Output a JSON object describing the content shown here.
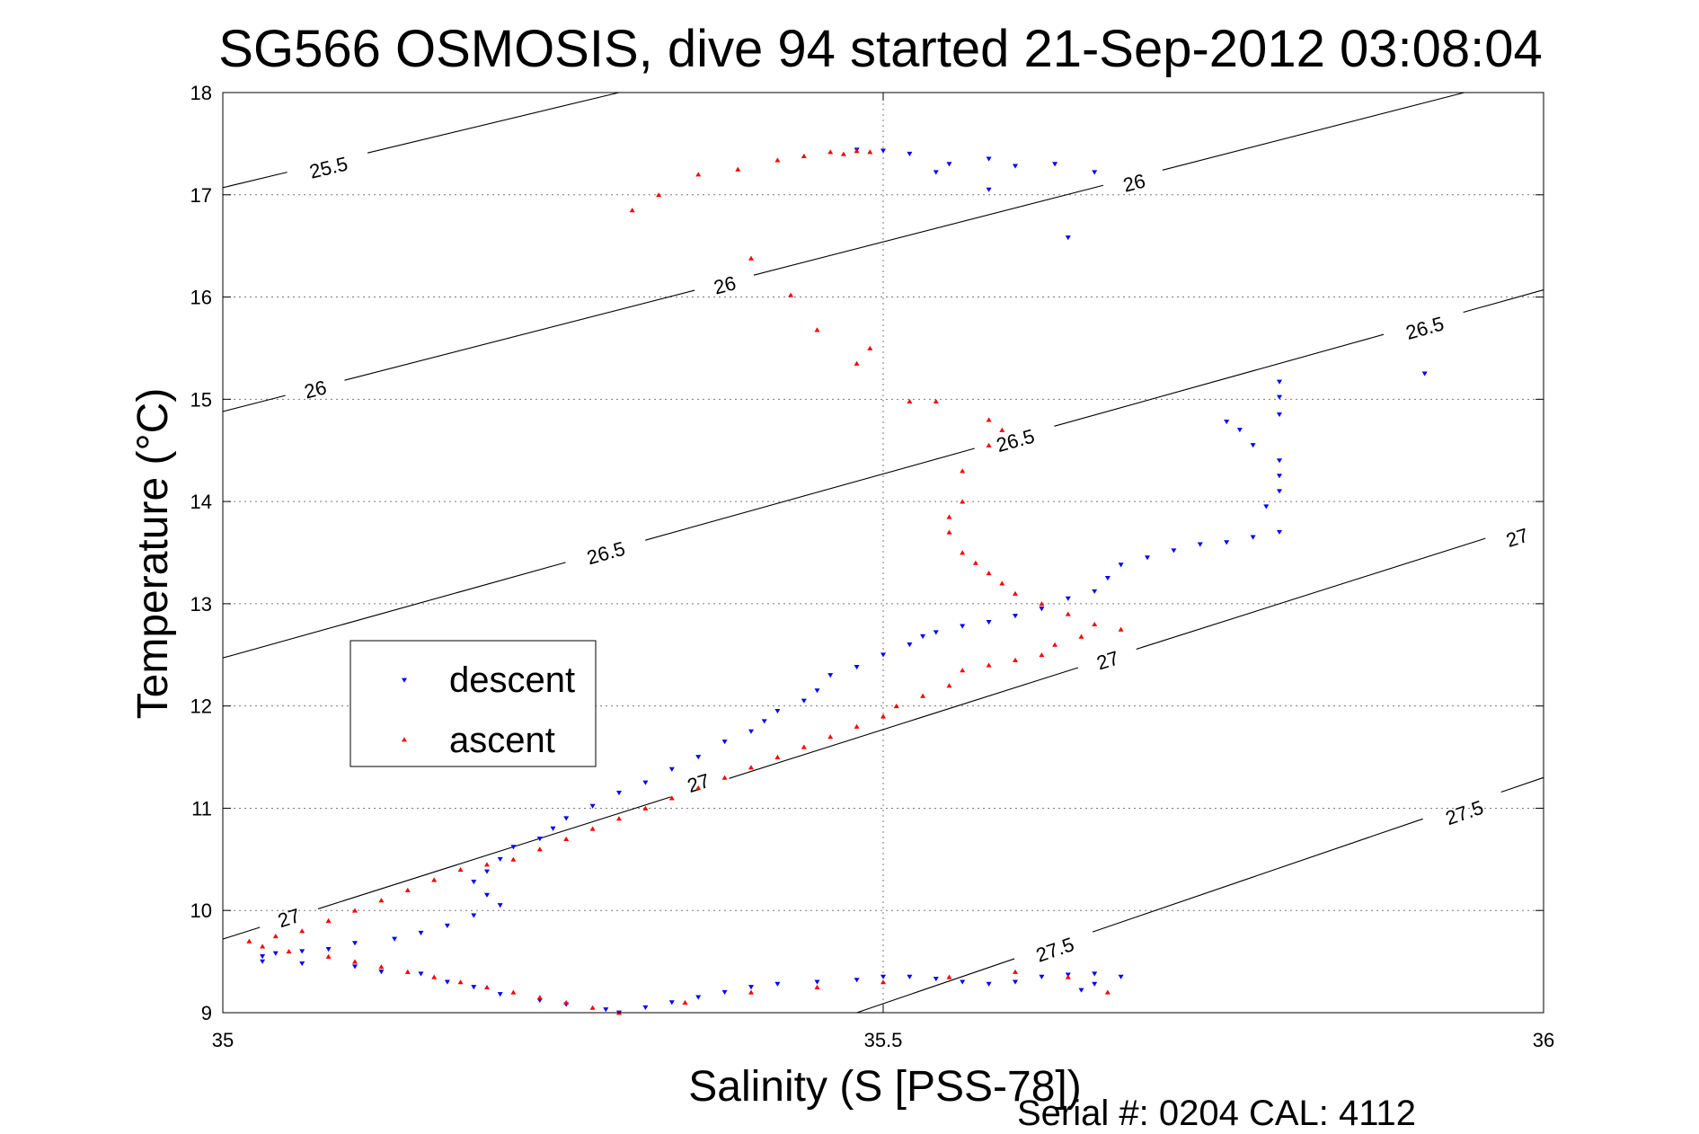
{
  "chart_data": {
    "type": "scatter",
    "title": "SG566 OSMOSIS, dive 94 started 21-Sep-2012 03:08:04",
    "xlabel": "Salinity (S [PSS-78])",
    "ylabel": "Temperature (°C)",
    "xlim": [
      35,
      36
    ],
    "ylim": [
      9,
      18
    ],
    "x_ticks": [
      "35",
      "35.5",
      "36"
    ],
    "y_ticks": [
      "9",
      "10",
      "11",
      "12",
      "13",
      "14",
      "15",
      "16",
      "17",
      "18"
    ],
    "grid": true,
    "legend_position": "left-middle",
    "footer": "Serial #: 0204  CAL: 4112",
    "series": [
      {
        "name": "descent",
        "color": "#0000ff",
        "marker": "down-triangle",
        "points": [
          [
            35.48,
            17.44
          ],
          [
            35.5,
            17.43
          ],
          [
            35.52,
            17.4
          ],
          [
            35.55,
            17.3
          ],
          [
            35.58,
            17.35
          ],
          [
            35.54,
            17.22
          ],
          [
            35.6,
            17.28
          ],
          [
            35.63,
            17.3
          ],
          [
            35.58,
            17.05
          ],
          [
            35.66,
            17.22
          ],
          [
            35.64,
            16.58
          ],
          [
            35.91,
            15.25
          ],
          [
            35.8,
            15.17
          ],
          [
            35.8,
            15.02
          ],
          [
            35.8,
            14.85
          ],
          [
            35.76,
            14.78
          ],
          [
            35.77,
            14.7
          ],
          [
            35.78,
            14.55
          ],
          [
            35.8,
            14.4
          ],
          [
            35.8,
            14.25
          ],
          [
            35.8,
            14.1
          ],
          [
            35.79,
            13.95
          ],
          [
            35.8,
            13.7
          ],
          [
            35.78,
            13.65
          ],
          [
            35.76,
            13.6
          ],
          [
            35.74,
            13.58
          ],
          [
            35.72,
            13.52
          ],
          [
            35.7,
            13.45
          ],
          [
            35.68,
            13.38
          ],
          [
            35.67,
            13.25
          ],
          [
            35.66,
            13.12
          ],
          [
            35.64,
            13.05
          ],
          [
            35.62,
            12.95
          ],
          [
            35.6,
            12.88
          ],
          [
            35.58,
            12.82
          ],
          [
            35.56,
            12.78
          ],
          [
            35.54,
            12.72
          ],
          [
            35.53,
            12.68
          ],
          [
            35.52,
            12.6
          ],
          [
            35.5,
            12.5
          ],
          [
            35.48,
            12.38
          ],
          [
            35.46,
            12.3
          ],
          [
            35.45,
            12.15
          ],
          [
            35.44,
            12.05
          ],
          [
            35.42,
            11.95
          ],
          [
            35.41,
            11.85
          ],
          [
            35.4,
            11.75
          ],
          [
            35.38,
            11.65
          ],
          [
            35.36,
            11.5
          ],
          [
            35.34,
            11.38
          ],
          [
            35.32,
            11.25
          ],
          [
            35.3,
            11.15
          ],
          [
            35.28,
            11.02
          ],
          [
            35.26,
            10.9
          ],
          [
            35.25,
            10.8
          ],
          [
            35.24,
            10.7
          ],
          [
            35.22,
            10.62
          ],
          [
            35.21,
            10.5
          ],
          [
            35.2,
            10.38
          ],
          [
            35.19,
            10.28
          ],
          [
            35.2,
            10.15
          ],
          [
            35.21,
            10.05
          ],
          [
            35.19,
            9.95
          ],
          [
            35.17,
            9.85
          ],
          [
            35.15,
            9.78
          ],
          [
            35.13,
            9.72
          ],
          [
            35.1,
            9.68
          ],
          [
            35.08,
            9.62
          ],
          [
            35.06,
            9.6
          ],
          [
            35.04,
            9.58
          ],
          [
            35.03,
            9.55
          ],
          [
            35.03,
            9.5
          ],
          [
            35.06,
            9.48
          ],
          [
            35.1,
            9.45
          ],
          [
            35.12,
            9.4
          ],
          [
            35.15,
            9.38
          ],
          [
            35.17,
            9.3
          ],
          [
            35.19,
            9.25
          ],
          [
            35.21,
            9.18
          ],
          [
            35.24,
            9.12
          ],
          [
            35.26,
            9.08
          ],
          [
            35.29,
            9.03
          ],
          [
            35.3,
            9.0
          ],
          [
            35.32,
            9.05
          ],
          [
            35.34,
            9.1
          ],
          [
            35.36,
            9.15
          ],
          [
            35.38,
            9.2
          ],
          [
            35.4,
            9.25
          ],
          [
            35.42,
            9.28
          ],
          [
            35.45,
            9.3
          ],
          [
            35.48,
            9.32
          ],
          [
            35.5,
            9.35
          ],
          [
            35.52,
            9.35
          ],
          [
            35.54,
            9.33
          ],
          [
            35.56,
            9.3
          ],
          [
            35.58,
            9.28
          ],
          [
            35.6,
            9.3
          ],
          [
            35.62,
            9.35
          ],
          [
            35.64,
            9.37
          ],
          [
            35.66,
            9.38
          ],
          [
            35.68,
            9.35
          ],
          [
            35.66,
            9.28
          ],
          [
            35.65,
            9.22
          ]
        ]
      },
      {
        "name": "ascent",
        "color": "#ff0000",
        "marker": "up-triangle",
        "points": [
          [
            35.31,
            16.85
          ],
          [
            35.33,
            17.0
          ],
          [
            35.36,
            17.2
          ],
          [
            35.39,
            17.25
          ],
          [
            35.42,
            17.34
          ],
          [
            35.44,
            17.38
          ],
          [
            35.46,
            17.42
          ],
          [
            35.48,
            17.43
          ],
          [
            35.49,
            17.42
          ],
          [
            35.47,
            17.4
          ],
          [
            35.4,
            16.38
          ],
          [
            35.43,
            16.02
          ],
          [
            35.45,
            15.68
          ],
          [
            35.49,
            15.5
          ],
          [
            35.48,
            15.35
          ],
          [
            35.52,
            14.98
          ],
          [
            35.54,
            14.98
          ],
          [
            35.58,
            14.8
          ],
          [
            35.59,
            14.7
          ],
          [
            35.58,
            14.55
          ],
          [
            35.56,
            14.3
          ],
          [
            35.56,
            14.0
          ],
          [
            35.55,
            13.85
          ],
          [
            35.55,
            13.7
          ],
          [
            35.56,
            13.5
          ],
          [
            35.57,
            13.4
          ],
          [
            35.58,
            13.3
          ],
          [
            35.59,
            13.2
          ],
          [
            35.6,
            13.1
          ],
          [
            35.62,
            13.0
          ],
          [
            35.64,
            12.9
          ],
          [
            35.66,
            12.8
          ],
          [
            35.68,
            12.75
          ],
          [
            35.65,
            12.68
          ],
          [
            35.63,
            12.6
          ],
          [
            35.62,
            12.5
          ],
          [
            35.6,
            12.45
          ],
          [
            35.58,
            12.4
          ],
          [
            35.56,
            12.35
          ],
          [
            35.55,
            12.2
          ],
          [
            35.53,
            12.1
          ],
          [
            35.51,
            12.0
          ],
          [
            35.5,
            11.9
          ],
          [
            35.48,
            11.8
          ],
          [
            35.46,
            11.7
          ],
          [
            35.44,
            11.6
          ],
          [
            35.42,
            11.5
          ],
          [
            35.4,
            11.4
          ],
          [
            35.38,
            11.3
          ],
          [
            35.36,
            11.2
          ],
          [
            35.34,
            11.1
          ],
          [
            35.32,
            11.0
          ],
          [
            35.3,
            10.9
          ],
          [
            35.28,
            10.8
          ],
          [
            35.26,
            10.7
          ],
          [
            35.24,
            10.6
          ],
          [
            35.22,
            10.5
          ],
          [
            35.2,
            10.45
          ],
          [
            35.18,
            10.4
          ],
          [
            35.16,
            10.3
          ],
          [
            35.14,
            10.2
          ],
          [
            35.12,
            10.1
          ],
          [
            35.1,
            10.0
          ],
          [
            35.08,
            9.9
          ],
          [
            35.06,
            9.8
          ],
          [
            35.04,
            9.75
          ],
          [
            35.02,
            9.7
          ],
          [
            35.03,
            9.65
          ],
          [
            35.05,
            9.6
          ],
          [
            35.08,
            9.55
          ],
          [
            35.1,
            9.5
          ],
          [
            35.12,
            9.45
          ],
          [
            35.14,
            9.4
          ],
          [
            35.16,
            9.35
          ],
          [
            35.18,
            9.3
          ],
          [
            35.2,
            9.25
          ],
          [
            35.22,
            9.2
          ],
          [
            35.24,
            9.15
          ],
          [
            35.26,
            9.1
          ],
          [
            35.28,
            9.05
          ],
          [
            35.3,
            9.0
          ],
          [
            35.35,
            9.1
          ],
          [
            35.4,
            9.2
          ],
          [
            35.45,
            9.25
          ],
          [
            35.5,
            9.3
          ],
          [
            35.55,
            9.35
          ],
          [
            35.6,
            9.4
          ],
          [
            35.64,
            9.35
          ],
          [
            35.67,
            9.2
          ]
        ]
      }
    ],
    "isopycnals": [
      {
        "label": "25.5",
        "segment": [
          [
            35.0,
            17.07
          ],
          [
            35.3,
            18.0
          ]
        ],
        "labels_at": [
          [
            35.08,
            17.27
          ]
        ]
      },
      {
        "label": "26",
        "segment": [
          [
            35.0,
            14.88
          ],
          [
            35.94,
            18.0
          ]
        ],
        "labels_at": [
          [
            35.07,
            15.1
          ],
          [
            35.38,
            16.12
          ],
          [
            35.69,
            17.12
          ]
        ]
      },
      {
        "label": "26.5",
        "segment": [
          [
            35.0,
            12.47
          ],
          [
            36.0,
            16.07
          ]
        ],
        "labels_at": [
          [
            35.29,
            13.5
          ],
          [
            35.6,
            14.6
          ],
          [
            35.91,
            15.7
          ]
        ]
      },
      {
        "label": "27",
        "segment": [
          [
            35.0,
            9.72
          ],
          [
            36.0,
            13.82
          ]
        ],
        "labels_at": [
          [
            35.05,
            9.93
          ],
          [
            35.36,
            11.25
          ],
          [
            35.67,
            12.45
          ],
          [
            35.98,
            13.65
          ]
        ]
      },
      {
        "label": "27.5",
        "segment": [
          [
            35.48,
            9.0
          ],
          [
            36.0,
            11.3
          ]
        ],
        "labels_at": [
          [
            35.63,
            9.62
          ],
          [
            35.94,
            10.96
          ]
        ]
      }
    ]
  }
}
